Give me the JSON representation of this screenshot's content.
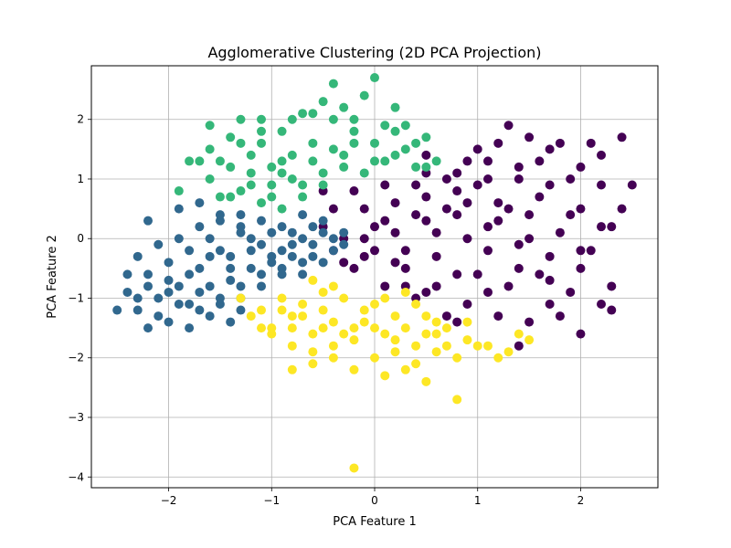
{
  "chart_data": {
    "type": "scatter",
    "title": "Agglomerative Clustering (2D PCA Projection)",
    "xlabel": "PCA Feature 1",
    "ylabel": "PCA Feature 2",
    "xlim": [
      -2.75,
      2.75
    ],
    "ylim": [
      -4.18,
      2.9
    ],
    "xticks": [
      -2,
      -1,
      0,
      1,
      2
    ],
    "xtick_labels": [
      "−2",
      "−1",
      "0",
      "1",
      "2"
    ],
    "yticks": [
      -4,
      -3,
      -2,
      -1,
      0,
      1,
      2
    ],
    "ytick_labels": [
      "−4",
      "−3",
      "−2",
      "−1",
      "0",
      "1",
      "2"
    ],
    "grid": true,
    "legend": "none",
    "series": [
      {
        "color": "#440154",
        "points": [
          [
            0.5,
            1.1
          ],
          [
            0.9,
            1.3
          ],
          [
            1.2,
            1.6
          ],
          [
            1.5,
            1.7
          ],
          [
            1.8,
            1.6
          ],
          [
            2.1,
            1.6
          ],
          [
            2.4,
            1.7
          ],
          [
            2.2,
            1.4
          ],
          [
            2.5,
            0.9
          ],
          [
            2.4,
            0.5
          ],
          [
            2.2,
            0.2
          ],
          [
            2.0,
            0.5
          ],
          [
            1.7,
            0.9
          ],
          [
            1.4,
            1.2
          ],
          [
            1.1,
            1.0
          ],
          [
            0.8,
            0.8
          ],
          [
            0.5,
            0.7
          ],
          [
            0.2,
            0.6
          ],
          [
            -0.1,
            0.5
          ],
          [
            -0.4,
            0.5
          ],
          [
            -0.5,
            0.2
          ],
          [
            -0.3,
            0.0
          ],
          [
            0.0,
            -0.2
          ],
          [
            0.3,
            -0.5
          ],
          [
            0.6,
            -0.8
          ],
          [
            0.9,
            -1.1
          ],
          [
            1.2,
            -1.3
          ],
          [
            1.5,
            -1.4
          ],
          [
            1.8,
            -1.3
          ],
          [
            2.0,
            -1.6
          ],
          [
            2.2,
            -1.1
          ],
          [
            2.3,
            -0.8
          ],
          [
            2.0,
            -0.5
          ],
          [
            1.7,
            -0.3
          ],
          [
            1.4,
            -0.1
          ],
          [
            1.1,
            0.2
          ],
          [
            0.8,
            0.4
          ],
          [
            0.5,
            0.3
          ],
          [
            0.2,
            0.1
          ],
          [
            -0.2,
            -0.5
          ],
          [
            0.1,
            -0.8
          ],
          [
            0.4,
            -1.0
          ],
          [
            0.7,
            -1.3
          ],
          [
            1.0,
            -0.6
          ],
          [
            1.3,
            -0.8
          ],
          [
            1.6,
            -0.6
          ],
          [
            1.9,
            -0.9
          ],
          [
            2.1,
            -0.2
          ],
          [
            1.8,
            0.1
          ],
          [
            1.5,
            0.4
          ],
          [
            1.2,
            0.6
          ],
          [
            0.9,
            0.0
          ],
          [
            0.6,
            -0.3
          ],
          [
            0.3,
            -0.2
          ],
          [
            0.0,
            0.2
          ],
          [
            -0.3,
            -0.4
          ],
          [
            1.0,
            1.5
          ],
          [
            1.3,
            1.9
          ],
          [
            1.6,
            1.3
          ],
          [
            1.9,
            1.0
          ],
          [
            2.2,
            0.9
          ],
          [
            0.7,
            1.0
          ],
          [
            0.4,
            0.9
          ],
          [
            0.1,
            0.9
          ],
          [
            -0.2,
            0.8
          ],
          [
            -0.5,
            0.8
          ],
          [
            1.4,
            -1.8
          ],
          [
            1.7,
            -1.1
          ],
          [
            0.8,
            -1.4
          ],
          [
            1.1,
            -0.9
          ],
          [
            1.5,
            0.0
          ],
          [
            1.2,
            0.3
          ],
          [
            0.9,
            0.6
          ],
          [
            0.6,
            0.1
          ],
          [
            0.3,
            -0.8
          ],
          [
            -0.1,
            -0.3
          ],
          [
            2.0,
            1.2
          ],
          [
            1.7,
            1.5
          ],
          [
            1.4,
            1.0
          ],
          [
            1.1,
            1.3
          ],
          [
            0.8,
            1.1
          ],
          [
            0.5,
            1.4
          ],
          [
            2.3,
            0.2
          ],
          [
            2.0,
            -0.2
          ],
          [
            1.7,
            -0.7
          ],
          [
            1.4,
            -0.5
          ],
          [
            1.1,
            -0.2
          ],
          [
            0.8,
            -0.6
          ],
          [
            0.5,
            -0.9
          ],
          [
            0.2,
            -0.4
          ],
          [
            -0.1,
            0.0
          ],
          [
            -0.4,
            -0.2
          ],
          [
            1.9,
            0.4
          ],
          [
            1.6,
            0.7
          ],
          [
            1.3,
            0.5
          ],
          [
            1.0,
            0.9
          ],
          [
            0.7,
            0.5
          ],
          [
            0.4,
            0.4
          ],
          [
            0.1,
            0.3
          ],
          [
            2.3,
            -1.2
          ]
        ]
      },
      {
        "color": "#31688e",
        "points": [
          [
            -2.2,
            0.3
          ],
          [
            -1.9,
            0.5
          ],
          [
            -1.7,
            0.6
          ],
          [
            -1.5,
            0.3
          ],
          [
            -1.3,
            0.1
          ],
          [
            -1.1,
            0.3
          ],
          [
            -0.9,
            0.2
          ],
          [
            -0.7,
            0.4
          ],
          [
            -0.5,
            0.3
          ],
          [
            -0.3,
            0.1
          ],
          [
            -0.4,
            -0.2
          ],
          [
            -0.6,
            -0.1
          ],
          [
            -0.8,
            -0.3
          ],
          [
            -1.0,
            -0.4
          ],
          [
            -1.2,
            -0.2
          ],
          [
            -1.4,
            -0.5
          ],
          [
            -1.6,
            -0.3
          ],
          [
            -1.8,
            -0.6
          ],
          [
            -2.0,
            -0.4
          ],
          [
            -2.2,
            -0.6
          ],
          [
            -2.4,
            -0.9
          ],
          [
            -2.3,
            -1.2
          ],
          [
            -2.5,
            -1.2
          ],
          [
            -2.2,
            -1.5
          ],
          [
            -1.9,
            -1.1
          ],
          [
            -1.7,
            -0.9
          ],
          [
            -1.5,
            -1.1
          ],
          [
            -1.3,
            -0.8
          ],
          [
            -1.1,
            -0.6
          ],
          [
            -0.9,
            -0.5
          ],
          [
            -0.7,
            -0.6
          ],
          [
            -1.6,
            -1.3
          ],
          [
            -1.4,
            -1.4
          ],
          [
            -1.8,
            -1.5
          ],
          [
            -2.0,
            -1.4
          ],
          [
            -2.1,
            -1.0
          ],
          [
            -1.9,
            -0.8
          ],
          [
            -1.7,
            -0.5
          ],
          [
            -1.5,
            -0.2
          ],
          [
            -1.3,
            0.2
          ],
          [
            -1.1,
            -0.1
          ],
          [
            -0.9,
            -0.2
          ],
          [
            -0.7,
            0.0
          ],
          [
            -0.5,
            0.1
          ],
          [
            -0.3,
            -0.1
          ],
          [
            -2.3,
            -0.3
          ],
          [
            -2.1,
            -0.1
          ],
          [
            -1.9,
            0.0
          ],
          [
            -1.7,
            0.2
          ],
          [
            -1.5,
            0.4
          ],
          [
            -1.3,
            0.4
          ],
          [
            -1.0,
            0.1
          ],
          [
            -0.8,
            0.1
          ],
          [
            -0.6,
            0.2
          ],
          [
            -0.4,
            0.0
          ],
          [
            -2.4,
            -0.6
          ],
          [
            -2.2,
            -0.8
          ],
          [
            -2.0,
            -0.9
          ],
          [
            -1.8,
            -1.1
          ],
          [
            -1.6,
            -0.8
          ],
          [
            -1.4,
            -0.7
          ],
          [
            -1.2,
            -0.5
          ],
          [
            -1.0,
            -0.3
          ],
          [
            -0.8,
            -0.1
          ],
          [
            -0.6,
            -0.3
          ],
          [
            -1.5,
            -1.0
          ],
          [
            -1.3,
            -1.2
          ],
          [
            -1.7,
            -1.2
          ],
          [
            -2.1,
            -1.3
          ],
          [
            -2.3,
            -1.0
          ],
          [
            -1.4,
            -0.3
          ],
          [
            -1.2,
            0.0
          ],
          [
            -1.6,
            0.0
          ],
          [
            -1.8,
            -0.2
          ],
          [
            -2.0,
            -0.7
          ],
          [
            -0.5,
            -0.4
          ],
          [
            -0.7,
            -0.4
          ],
          [
            -0.9,
            -0.6
          ],
          [
            -1.1,
            -0.8
          ],
          [
            -1.3,
            -1.0
          ]
        ]
      },
      {
        "color": "#35b779",
        "points": [
          [
            -1.9,
            0.8
          ],
          [
            -1.8,
            1.3
          ],
          [
            -1.6,
            1.5
          ],
          [
            -1.4,
            1.7
          ],
          [
            -1.3,
            2.0
          ],
          [
            -1.1,
            2.0
          ],
          [
            -0.9,
            1.8
          ],
          [
            -0.7,
            2.1
          ],
          [
            -0.5,
            2.3
          ],
          [
            -0.4,
            2.6
          ],
          [
            -0.1,
            2.4
          ],
          [
            0.0,
            2.7
          ],
          [
            0.2,
            2.2
          ],
          [
            0.3,
            1.9
          ],
          [
            0.5,
            1.7
          ],
          [
            0.6,
            1.3
          ],
          [
            0.4,
            1.2
          ],
          [
            0.2,
            1.4
          ],
          [
            0.0,
            1.6
          ],
          [
            -0.2,
            1.8
          ],
          [
            -0.4,
            2.0
          ],
          [
            -0.6,
            1.6
          ],
          [
            -0.8,
            1.4
          ],
          [
            -1.0,
            1.2
          ],
          [
            -1.2,
            1.4
          ],
          [
            -1.4,
            1.2
          ],
          [
            -1.6,
            1.0
          ],
          [
            -1.5,
            0.7
          ],
          [
            -1.3,
            0.8
          ],
          [
            -1.1,
            0.6
          ],
          [
            -0.9,
            0.5
          ],
          [
            -0.7,
            0.7
          ],
          [
            -0.5,
            0.9
          ],
          [
            -0.3,
            1.2
          ],
          [
            -0.1,
            1.1
          ],
          [
            0.1,
            1.3
          ],
          [
            0.3,
            1.5
          ],
          [
            -0.8,
            1.0
          ],
          [
            -1.0,
            0.9
          ],
          [
            -1.2,
            1.1
          ],
          [
            -1.6,
            1.9
          ],
          [
            -1.3,
            1.6
          ],
          [
            -1.1,
            1.6
          ],
          [
            -0.9,
            1.3
          ],
          [
            -0.6,
            1.3
          ],
          [
            -0.4,
            1.5
          ],
          [
            -0.2,
            1.6
          ],
          [
            0.1,
            1.9
          ],
          [
            0.4,
            1.6
          ],
          [
            -0.8,
            2.0
          ],
          [
            -0.6,
            2.1
          ],
          [
            -0.3,
            2.2
          ],
          [
            -0.2,
            2.0
          ],
          [
            0.2,
            1.8
          ],
          [
            -1.5,
            1.3
          ],
          [
            -1.7,
            1.3
          ],
          [
            -1.2,
            0.9
          ],
          [
            -1.0,
            0.7
          ],
          [
            -0.7,
            0.9
          ],
          [
            -0.5,
            1.1
          ],
          [
            -1.4,
            0.7
          ],
          [
            -0.9,
            1.1
          ],
          [
            -0.3,
            1.4
          ],
          [
            0.0,
            1.3
          ],
          [
            0.5,
            1.2
          ],
          [
            -1.1,
            1.8
          ]
        ]
      },
      {
        "color": "#fde725",
        "points": [
          [
            -1.3,
            -1.0
          ],
          [
            -1.1,
            -1.2
          ],
          [
            -1.0,
            -1.5
          ],
          [
            -0.8,
            -1.3
          ],
          [
            -0.6,
            -1.6
          ],
          [
            -0.4,
            -1.4
          ],
          [
            -0.2,
            -1.7
          ],
          [
            0.0,
            -1.5
          ],
          [
            0.2,
            -1.3
          ],
          [
            0.4,
            -1.1
          ],
          [
            0.5,
            -1.6
          ],
          [
            0.7,
            -1.8
          ],
          [
            0.9,
            -1.7
          ],
          [
            1.1,
            -1.8
          ],
          [
            1.3,
            -1.9
          ],
          [
            1.5,
            -1.7
          ],
          [
            1.2,
            -2.0
          ],
          [
            1.0,
            -1.8
          ],
          [
            0.8,
            -2.0
          ],
          [
            0.6,
            -1.9
          ],
          [
            0.4,
            -2.1
          ],
          [
            0.2,
            -1.9
          ],
          [
            0.0,
            -2.0
          ],
          [
            -0.2,
            -2.2
          ],
          [
            -0.4,
            -2.0
          ],
          [
            -0.6,
            -1.9
          ],
          [
            -0.8,
            -1.8
          ],
          [
            -1.0,
            -1.6
          ],
          [
            -0.7,
            -1.1
          ],
          [
            -0.5,
            -0.9
          ],
          [
            -0.3,
            -1.0
          ],
          [
            -0.1,
            -1.2
          ],
          [
            0.1,
            -1.0
          ],
          [
            0.3,
            -0.9
          ],
          [
            0.5,
            -1.3
          ],
          [
            0.7,
            -1.5
          ],
          [
            -0.9,
            -1.0
          ],
          [
            -0.7,
            -1.3
          ],
          [
            -0.5,
            -1.5
          ],
          [
            -0.3,
            -1.6
          ],
          [
            -0.1,
            -1.4
          ],
          [
            0.1,
            -1.6
          ],
          [
            0.3,
            -1.5
          ],
          [
            0.9,
            -1.4
          ],
          [
            0.8,
            -2.7
          ],
          [
            0.5,
            -2.4
          ],
          [
            0.3,
            -2.2
          ],
          [
            -0.6,
            -2.1
          ],
          [
            -0.8,
            -2.2
          ],
          [
            -0.2,
            -3.85
          ],
          [
            0.1,
            -2.3
          ],
          [
            -0.4,
            -1.8
          ],
          [
            0.6,
            -1.6
          ],
          [
            1.4,
            -1.6
          ],
          [
            -1.2,
            -1.3
          ],
          [
            -0.9,
            -1.2
          ],
          [
            -0.6,
            -0.7
          ],
          [
            -0.4,
            -0.8
          ],
          [
            0.0,
            -1.1
          ],
          [
            0.2,
            -1.7
          ],
          [
            0.4,
            -1.8
          ],
          [
            0.6,
            -1.4
          ],
          [
            -0.2,
            -1.5
          ],
          [
            -0.5,
            -1.2
          ],
          [
            -0.8,
            -1.5
          ],
          [
            -1.1,
            -1.5
          ]
        ]
      }
    ]
  }
}
